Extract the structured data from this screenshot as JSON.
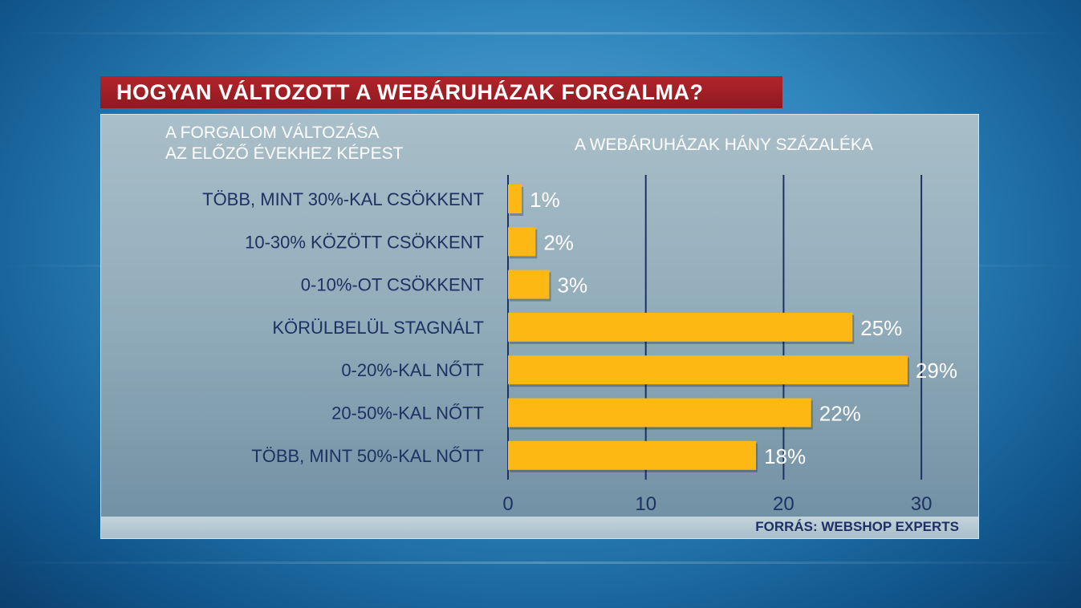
{
  "title": "HOGYAN VÁLTOZOTT A WEBÁRUHÁZAK FORGALMA?",
  "source": "FORRÁS: WEBSHOP EXPERTS",
  "colors": {
    "bar": "#fdb813",
    "title_bg": "#a11f26",
    "category_text": "#1d3163",
    "value_text": "#ffffff"
  },
  "chart_data": {
    "type": "bar",
    "orientation": "horizontal",
    "title": "HOGYAN VÁLTOZOTT A WEBÁRUHÁZAK FORGALMA?",
    "ylabel_lines": [
      "A FORGALOM VÁLTOZÁSA",
      "AZ ELŐZŐ ÉVEKHEZ KÉPEST"
    ],
    "xlabel": "A WEBÁRUHÁZAK HÁNY SZÁZALÉKA",
    "categories": [
      "TÖBB, MINT 30%-KAL CSÖKKENT",
      "10-30% KÖZÖTT CSÖKKENT",
      "0-10%-OT CSÖKKENT",
      "KÖRÜLBELÜL STAGNÁLT",
      "0-20%-KAL NŐTT",
      "20-50%-KAL NŐTT",
      "TÖBB, MINT 50%-KAL NŐTT"
    ],
    "values": [
      1,
      2,
      3,
      25,
      29,
      22,
      18
    ],
    "data_labels": [
      "1%",
      "2%",
      "3%",
      "25%",
      "29%",
      "22%",
      "18%"
    ],
    "xticks": [
      0,
      10,
      20,
      30
    ],
    "xtick_labels": [
      "0",
      "10",
      "20",
      "30"
    ],
    "xlim": [
      0,
      33
    ],
    "grid": true
  }
}
